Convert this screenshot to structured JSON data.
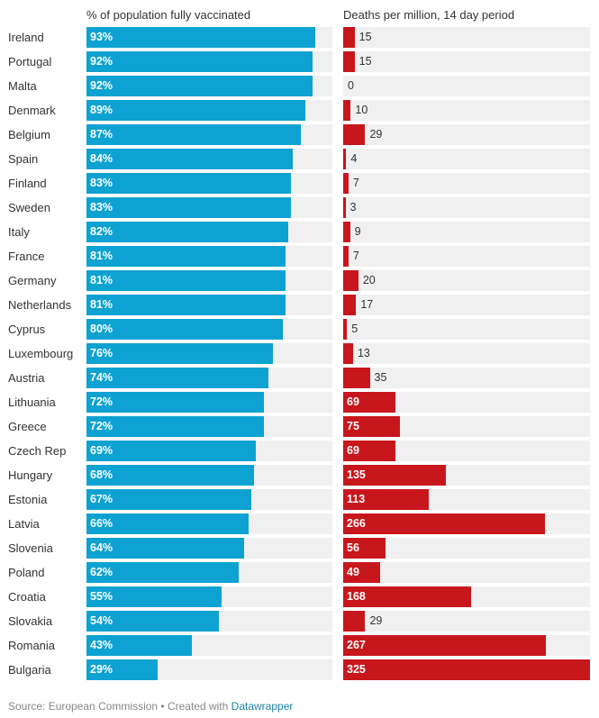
{
  "headers": {
    "vaccinated": "% of population fully vaccinated",
    "deaths": "Deaths per million, 14 day period"
  },
  "footer": {
    "source": "Source: European Commission • Created with ",
    "link": "Datawrapper"
  },
  "colors": {
    "vaccinated_bar": "#0da2d1",
    "deaths_bar": "#c8161d",
    "track": "#f0f0f0"
  },
  "chart_data": [
    {
      "type": "bar",
      "orientation": "horizontal",
      "title": "% of population fully vaccinated",
      "value_suffix": "%",
      "xlim": [
        0,
        100
      ],
      "categories": [
        "Ireland",
        "Portugal",
        "Malta",
        "Denmark",
        "Belgium",
        "Spain",
        "Finland",
        "Sweden",
        "Italy",
        "France",
        "Germany",
        "Netherlands",
        "Cyprus",
        "Luxembourg",
        "Austria",
        "Lithuania",
        "Greece",
        "Czech Rep",
        "Hungary",
        "Estonia",
        "Latvia",
        "Slovenia",
        "Poland",
        "Croatia",
        "Slovakia",
        "Romania",
        "Bulgaria"
      ],
      "values": [
        93,
        92,
        92,
        89,
        87,
        84,
        83,
        83,
        82,
        81,
        81,
        81,
        80,
        76,
        74,
        72,
        72,
        69,
        68,
        67,
        66,
        64,
        62,
        55,
        54,
        43,
        29
      ]
    },
    {
      "type": "bar",
      "orientation": "horizontal",
      "title": "Deaths per million, 14 day period",
      "xlim": [
        0,
        325
      ],
      "categories": [
        "Ireland",
        "Portugal",
        "Malta",
        "Denmark",
        "Belgium",
        "Spain",
        "Finland",
        "Sweden",
        "Italy",
        "France",
        "Germany",
        "Netherlands",
        "Cyprus",
        "Luxembourg",
        "Austria",
        "Lithuania",
        "Greece",
        "Czech Rep",
        "Hungary",
        "Estonia",
        "Latvia",
        "Slovenia",
        "Poland",
        "Croatia",
        "Slovakia",
        "Romania",
        "Bulgaria"
      ],
      "values": [
        15,
        15,
        0,
        10,
        29,
        4,
        7,
        3,
        9,
        7,
        20,
        17,
        5,
        13,
        35,
        69,
        75,
        69,
        135,
        113,
        266,
        56,
        49,
        168,
        29,
        267,
        325
      ]
    }
  ]
}
